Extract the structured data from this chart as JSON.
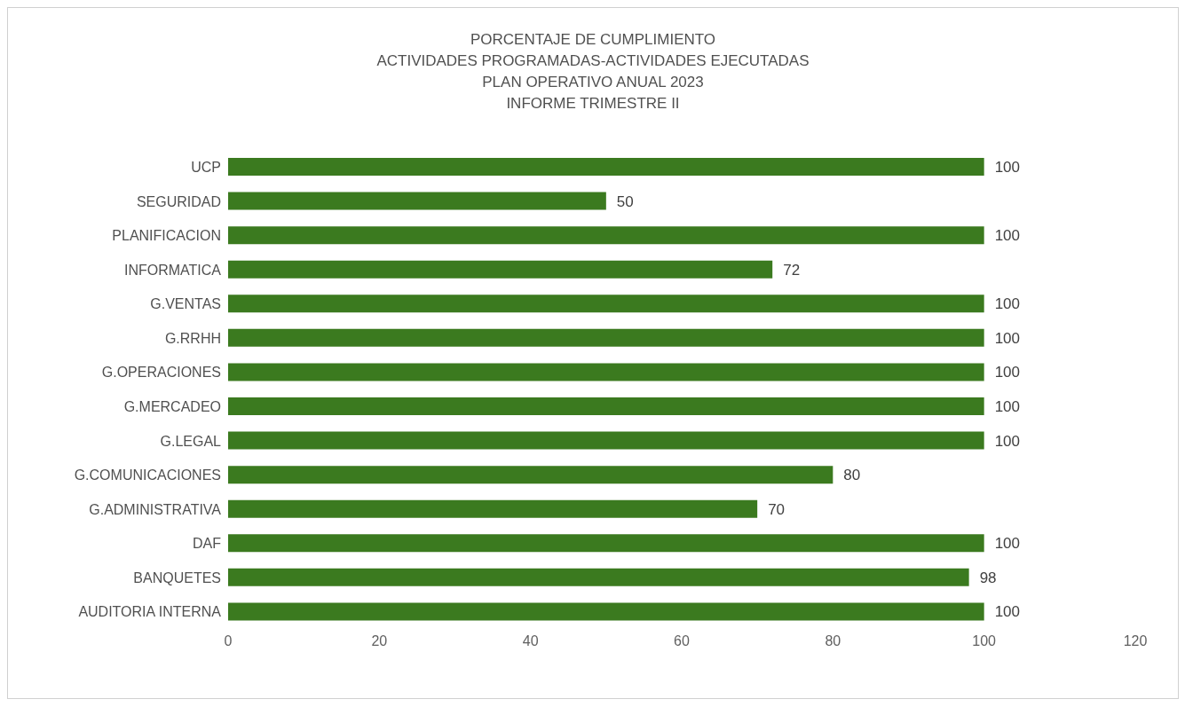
{
  "chart_data": {
    "type": "bar",
    "orientation": "horizontal",
    "title": "PORCENTAJE DE CUMPLIMIENTO\nACTIVIDADES PROGRAMADAS-ACTIVIDADES EJECUTADAS\nPLAN OPERATIVO ANUAL 2023\nINFORME TRIMESTRE II",
    "categories": [
      "UCP",
      "SEGURIDAD",
      "PLANIFICACION",
      "INFORMATICA",
      "G.VENTAS",
      "G.RRHH",
      "G.OPERACIONES",
      "G.MERCADEO",
      "G.LEGAL",
      "G.COMUNICACIONES",
      "G.ADMINISTRATIVA",
      "DAF",
      "BANQUETES",
      "AUDITORIA INTERNA"
    ],
    "values": [
      100,
      50,
      100,
      72,
      100,
      100,
      100,
      100,
      100,
      80,
      70,
      100,
      98,
      100
    ],
    "color": "#3b7a1f",
    "xlim": [
      0,
      120
    ],
    "xticks": [
      0,
      20,
      40,
      60,
      80,
      100,
      120
    ],
    "grid": false,
    "legend": false,
    "data_labels": true
  }
}
